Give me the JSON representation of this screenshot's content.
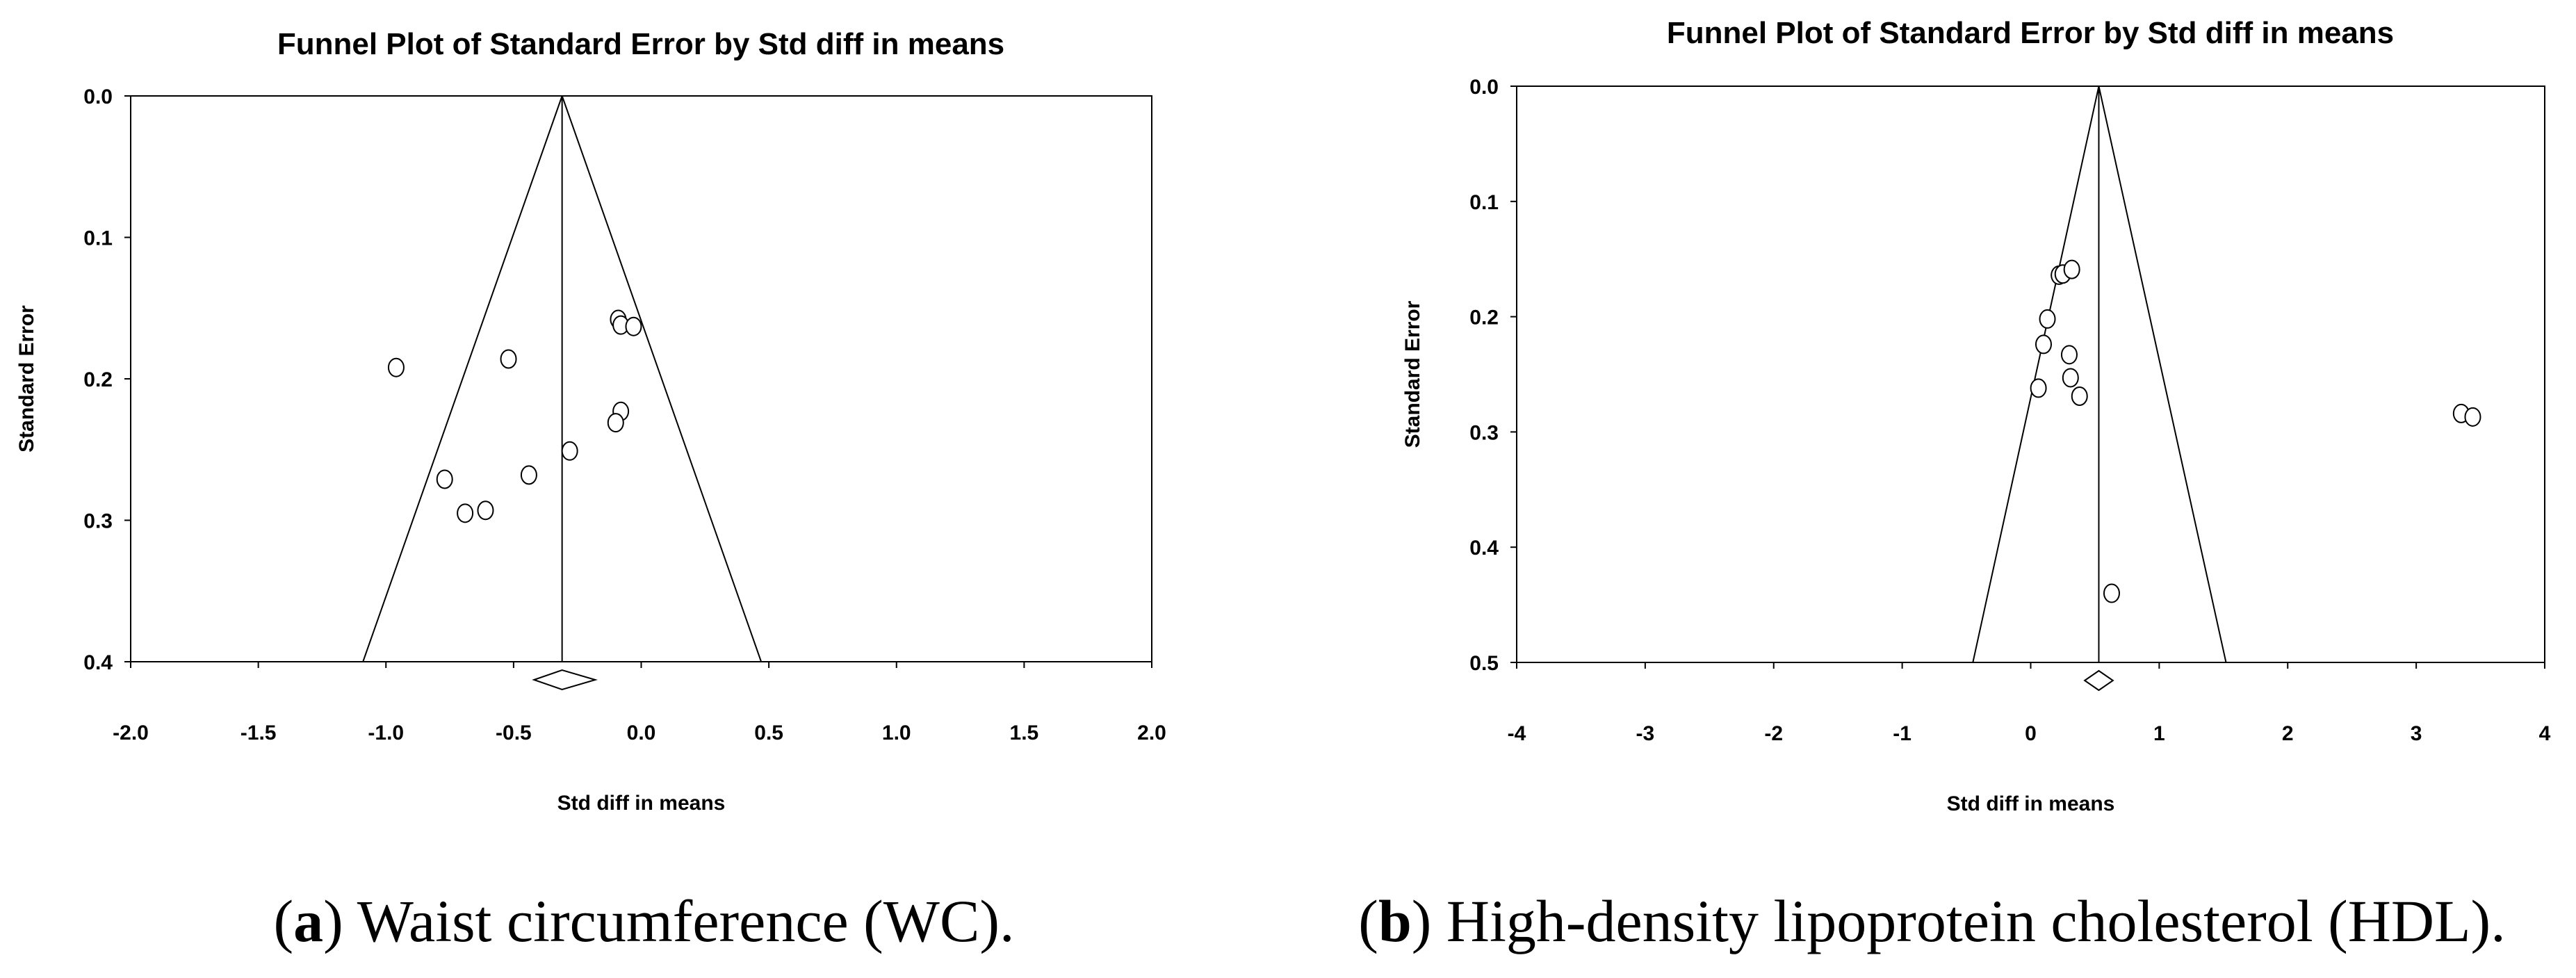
{
  "chart_data": [
    {
      "type": "scatter",
      "title": "Funnel Plot of Standard Error by Std diff in means",
      "xlabel": "Std diff in means",
      "ylabel": "Standard Error",
      "xlim": [
        -2.0,
        2.0
      ],
      "ylim": [
        0.0,
        0.4
      ],
      "y_inverted": true,
      "x_ticks": [
        "-2.0",
        "-1.5",
        "-1.0",
        "-0.5",
        "0.0",
        "0.5",
        "1.0",
        "1.5",
        "2.0"
      ],
      "y_ticks": [
        "0.0",
        "0.1",
        "0.2",
        "0.3",
        "0.4"
      ],
      "pooled_estimate": -0.31,
      "funnel_base_x": [
        -1.09,
        0.47
      ],
      "points": [
        {
          "x": -0.96,
          "y": 0.192
        },
        {
          "x": -0.52,
          "y": 0.186
        },
        {
          "x": -0.09,
          "y": 0.158
        },
        {
          "x": -0.08,
          "y": 0.162
        },
        {
          "x": -0.03,
          "y": 0.163
        },
        {
          "x": -0.08,
          "y": 0.223
        },
        {
          "x": -0.1,
          "y": 0.231
        },
        {
          "x": -0.28,
          "y": 0.251
        },
        {
          "x": -0.44,
          "y": 0.268
        },
        {
          "x": -0.77,
          "y": 0.271
        },
        {
          "x": -0.69,
          "y": 0.295
        },
        {
          "x": -0.61,
          "y": 0.293
        }
      ],
      "diamond": {
        "center": -0.31,
        "low": -0.42,
        "high": -0.18
      },
      "caption_letter": "a",
      "caption_text": "Waist circumference (WC)."
    },
    {
      "type": "scatter",
      "title": "Funnel Plot of Standard Error by Std diff in means",
      "xlabel": "Std diff in means",
      "ylabel": "Standard Error",
      "xlim": [
        -4,
        4
      ],
      "ylim": [
        0.0,
        0.5
      ],
      "y_inverted": true,
      "x_ticks": [
        "-4",
        "-3",
        "-2",
        "-1",
        "0",
        "1",
        "2",
        "3",
        "4"
      ],
      "y_ticks": [
        "0.0",
        "0.1",
        "0.2",
        "0.3",
        "0.4",
        "0.5"
      ],
      "pooled_estimate": 0.53,
      "funnel_base_x": [
        -0.45,
        1.52
      ],
      "points": [
        {
          "x": 0.22,
          "y": 0.164
        },
        {
          "x": 0.25,
          "y": 0.163
        },
        {
          "x": 0.32,
          "y": 0.159
        },
        {
          "x": 0.13,
          "y": 0.202
        },
        {
          "x": 0.1,
          "y": 0.224
        },
        {
          "x": 0.3,
          "y": 0.233
        },
        {
          "x": 0.31,
          "y": 0.253
        },
        {
          "x": 0.06,
          "y": 0.262
        },
        {
          "x": 0.38,
          "y": 0.269
        },
        {
          "x": 3.35,
          "y": 0.284
        },
        {
          "x": 3.44,
          "y": 0.287
        },
        {
          "x": 0.63,
          "y": 0.44
        }
      ],
      "diamond": {
        "center": 0.53,
        "low": 0.42,
        "high": 0.64
      },
      "caption_letter": "b",
      "caption_text": "High-density lipoprotein cholesterol (HDL)."
    }
  ]
}
